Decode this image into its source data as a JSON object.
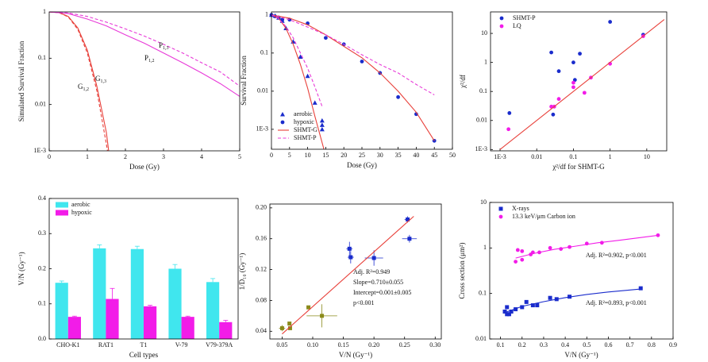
{
  "chart_data": [
    {
      "type": "line",
      "xlabel": "Dose (Gy)",
      "ylabel": "Simulated Survival Fraction",
      "xlim": [
        0,
        5
      ],
      "xticks": [
        0,
        1,
        2,
        3,
        4,
        5
      ],
      "ylim": [
        0.001,
        1
      ],
      "ylog": true,
      "yticks": [
        {
          "value": 0.001,
          "label": "1E-3"
        },
        0.01,
        0.1,
        1
      ],
      "series": [
        {
          "color": "#e8403a",
          "dash": false,
          "x": [
            0,
            0.25,
            0.5,
            0.75,
            1,
            1.25,
            1.5,
            1.56
          ],
          "values": [
            1,
            0.97,
            0.8,
            0.45,
            0.15,
            0.025,
            0.0025,
            0.001
          ]
        },
        {
          "color": "#e8403a",
          "dash": true,
          "x": [
            0,
            0.25,
            0.5,
            0.75,
            1,
            1.25,
            1.5,
            1.53
          ],
          "values": [
            1,
            0.97,
            0.78,
            0.42,
            0.13,
            0.02,
            0.0014,
            0.001
          ]
        },
        {
          "color": "#e83ad8",
          "dash": false,
          "x": [
            0,
            0.5,
            1,
            1.5,
            2,
            2.5,
            3,
            3.5,
            4,
            4.5,
            5
          ],
          "values": [
            1,
            0.92,
            0.7,
            0.5,
            0.32,
            0.21,
            0.13,
            0.08,
            0.048,
            0.028,
            0.015
          ]
        },
        {
          "color": "#e83ad8",
          "dash": true,
          "x": [
            0,
            0.5,
            1,
            1.5,
            2,
            2.5,
            3,
            3.5,
            4,
            4.5,
            5
          ],
          "values": [
            1,
            0.95,
            0.8,
            0.6,
            0.43,
            0.3,
            0.2,
            0.13,
            0.08,
            0.05,
            0.025
          ]
        }
      ],
      "annotations": [
        {
          "text": "G",
          "sub": "1,2"
        },
        {
          "text": "G",
          "sub": "1,3"
        },
        {
          "text": "P",
          "sub": "1,2"
        },
        {
          "text": "P",
          "sub": "1,3"
        }
      ]
    },
    {
      "type": "scatter",
      "xlabel": "Dose (Gy)",
      "ylabel": "Survival Fraction",
      "xlim": [
        0,
        50
      ],
      "xticks": [
        0,
        5,
        10,
        15,
        20,
        25,
        30,
        35,
        40,
        45,
        50
      ],
      "ylim": [
        0.0003,
        1.2
      ],
      "ylog": true,
      "yticks": [
        {
          "value": 0.001,
          "label": "1E-3"
        },
        0.01,
        0.1,
        1
      ],
      "legend": "lower left",
      "series": [
        {
          "name": "aerobic",
          "color": "#1a2ccc",
          "marker": "triangle",
          "x": [
            0,
            1,
            2,
            3,
            4,
            6,
            8,
            10,
            12,
            14,
            14,
            14
          ],
          "values": [
            1,
            0.95,
            0.85,
            0.7,
            0.45,
            0.2,
            0.08,
            0.025,
            0.005,
            0.0017,
            0.0013,
            0.001
          ]
        },
        {
          "name": "hypoxic",
          "color": "#1a2ccc",
          "marker": "circle",
          "x": [
            0,
            1,
            2,
            3,
            5,
            10,
            15,
            20,
            25,
            30,
            35,
            40,
            45
          ],
          "values": [
            1,
            0.92,
            0.85,
            0.75,
            0.75,
            0.6,
            0.25,
            0.17,
            0.06,
            0.03,
            0.007,
            0.0025,
            0.0005
          ]
        },
        {
          "name": "SHMT-G",
          "color": "#e8403a",
          "dash": false,
          "x": [
            0,
            2,
            4,
            6,
            8,
            10,
            12,
            14.5,
            null,
            0,
            5,
            10,
            15,
            20,
            25,
            30,
            35,
            40,
            45
          ],
          "values": [
            1,
            0.82,
            0.45,
            0.17,
            0.05,
            0.012,
            0.0022,
            0.0003,
            null,
            1,
            0.82,
            0.55,
            0.3,
            0.15,
            0.075,
            0.03,
            0.01,
            0.0028,
            0.0005
          ]
        },
        {
          "name": "SHMT-P",
          "color": "#e83ad8",
          "dash": true,
          "x": [
            0,
            2,
            4,
            6,
            8,
            10,
            12,
            14,
            null,
            0,
            5,
            10,
            15,
            20,
            25,
            30,
            35,
            40,
            45
          ],
          "values": [
            1,
            0.8,
            0.5,
            0.25,
            0.1,
            0.04,
            0.013,
            0.004,
            null,
            1,
            0.75,
            0.48,
            0.3,
            0.17,
            0.09,
            0.05,
            0.03,
            0.015,
            0.008
          ]
        }
      ]
    },
    {
      "type": "scatter",
      "xlabel": "χ²/df for SHMT-G",
      "ylabel": "χ²/df",
      "xlim": [
        0.00055,
        35
      ],
      "xlog": true,
      "xticks": [
        {
          "value": 0.001,
          "label": "1E-3"
        },
        0.01,
        0.1,
        1,
        10
      ],
      "ylim": [
        0.0009,
        55
      ],
      "ylog": true,
      "yticks": [
        {
          "value": 0.001,
          "label": "1E-3"
        },
        0.01,
        0.1,
        1,
        10
      ],
      "legend": "upper left",
      "series": [
        {
          "name": "SHMT-P",
          "color": "#1a2ccc",
          "marker": "circle",
          "x": [
            0.0018,
            0.025,
            0.028,
            0.04,
            0.1,
            0.11,
            0.15,
            1,
            8
          ],
          "values": [
            0.018,
            2.2,
            0.016,
            0.5,
            1,
            0.25,
            2,
            25,
            9
          ]
        },
        {
          "name": "LQ",
          "color": "#f21ce8",
          "marker": "circle",
          "x": [
            0.0017,
            0.025,
            0.03,
            0.04,
            0.1,
            0.1,
            0.2,
            0.3,
            1,
            8
          ],
          "values": [
            0.005,
            0.03,
            0.03,
            0.055,
            0.2,
            0.14,
            0.09,
            0.3,
            0.9,
            8
          ]
        },
        {
          "color": "#e8403a",
          "dash": false,
          "x": [
            0.001,
            30
          ],
          "values": [
            0.001,
            30
          ]
        }
      ]
    },
    {
      "type": "bar",
      "xlabel": "Cell types",
      "ylabel": "V/N (Gy⁻¹)",
      "categories": [
        "CHO-K1",
        "RAT1",
        "T1",
        "V-79",
        "V79-379A"
      ],
      "ylim": [
        0,
        0.4
      ],
      "yticks": [
        {
          "value": 0,
          "label": "0.0"
        },
        0.1,
        0.2,
        0.3,
        0.4
      ],
      "legend": "upper left",
      "series": [
        {
          "name": "aerobic",
          "color": "#40e6ee",
          "values": [
            0.16,
            0.258,
            0.256,
            0.2,
            0.162
          ],
          "errors": [
            0.005,
            0.01,
            0.008,
            0.012,
            0.01
          ]
        },
        {
          "name": "hypoxic",
          "color": "#f21ce8",
          "values": [
            0.063,
            0.114,
            0.093,
            0.063,
            0.048
          ],
          "errors": [
            0.002,
            0.03,
            0.003,
            0.002,
            0.005
          ]
        }
      ]
    },
    {
      "type": "scatter",
      "xlabel": "V/N (Gy⁻¹)",
      "ylabel": "1/D₁₀ (Gy⁻¹)",
      "xlim": [
        0.03,
        0.31
      ],
      "xticks": [
        0.05,
        {
          "value": 0.1,
          "label": "0.10"
        },
        0.15,
        {
          "value": 0.2,
          "label": "0.20"
        },
        0.25,
        {
          "value": 0.3,
          "label": "0.30"
        }
      ],
      "ylim": [
        0.03,
        0.205
      ],
      "yticks": [
        0.04,
        0.08,
        0.12,
        0.16,
        {
          "value": 0.2,
          "label": "0.20"
        }
      ],
      "series": [
        {
          "color": "#1a2ccc",
          "marker": "square",
          "x": [
            0.16,
            0.162,
            0.2,
            0.255,
            0.258
          ],
          "values": [
            0.147,
            0.136,
            0.135,
            0.185,
            0.16
          ],
          "xerr": [
            0.005,
            0.005,
            0.015,
            0.005,
            0.012
          ],
          "yerr": [
            0.009,
            0.008,
            0.01,
            0.004,
            0.005
          ]
        },
        {
          "color": "#8a8a1a",
          "marker": "square",
          "x": [
            0.05,
            0.062,
            0.063,
            0.093,
            0.115
          ],
          "values": [
            0.044,
            0.05,
            0.044,
            0.071,
            0.06
          ],
          "xerr": [
            0.005,
            0,
            0,
            0.003,
            0.025
          ],
          "yerr": [
            0.004,
            0.002,
            0.002,
            0.002,
            0.015
          ]
        },
        {
          "color": "#e8403a",
          "dash": false,
          "x": [
            0.05,
            0.265
          ],
          "values": [
            0.0365,
            0.189
          ]
        }
      ],
      "annotations": [
        "Adj. R²=0.949",
        "Slope=0.710±0.055",
        "Intercept=0.001±0.005",
        "p<0.001"
      ]
    },
    {
      "type": "scatter",
      "xlabel": "V/N (Gy⁻¹)",
      "ylabel": "Cross section (μm²)",
      "xlim": [
        0.05,
        0.9
      ],
      "xticks": [
        0.1,
        0.2,
        0.3,
        0.4,
        0.5,
        0.6,
        0.7,
        0.8,
        0.9
      ],
      "ylim": [
        0.01,
        10
      ],
      "ylog": true,
      "yticks": [
        0.01,
        0.1,
        1,
        10
      ],
      "legend": "upper left",
      "series": [
        {
          "name": "X-rays",
          "color": "#1a2ccc",
          "marker": "square",
          "x": [
            0.12,
            0.13,
            0.13,
            0.14,
            0.15,
            0.17,
            0.2,
            0.22,
            0.25,
            0.27,
            0.33,
            0.36,
            0.42,
            0.75
          ],
          "values": [
            0.04,
            0.035,
            0.05,
            0.035,
            0.04,
            0.045,
            0.05,
            0.065,
            0.055,
            0.055,
            0.08,
            0.075,
            0.085,
            0.13
          ]
        },
        {
          "name": "13.3 keV/μm Carbon ion",
          "color": "#f21ce8",
          "marker": "circle",
          "x": [
            0.17,
            0.18,
            0.2,
            0.2,
            0.24,
            0.25,
            0.28,
            0.33,
            0.38,
            0.42,
            0.5,
            0.57,
            0.83
          ],
          "values": [
            0.5,
            0.9,
            0.55,
            0.85,
            0.72,
            0.8,
            0.8,
            1,
            0.95,
            1.05,
            1.25,
            1.3,
            1.9
          ]
        },
        {
          "color": "#1a2ccc",
          "dash": false,
          "x": [
            0.12,
            0.2,
            0.3,
            0.4,
            0.5,
            0.6,
            0.75
          ],
          "values": [
            0.038,
            0.052,
            0.066,
            0.081,
            0.095,
            0.108,
            0.125
          ]
        },
        {
          "color": "#f21ce8",
          "dash": false,
          "x": [
            0.17,
            0.25,
            0.35,
            0.45,
            0.55,
            0.65,
            0.83
          ],
          "values": [
            0.6,
            0.75,
            0.93,
            1.1,
            1.3,
            1.47,
            1.9
          ]
        }
      ],
      "annotations": [
        "Adj. R²=0.902, p<0.001",
        "Adj. R²=0.893, p<0.001"
      ]
    }
  ]
}
